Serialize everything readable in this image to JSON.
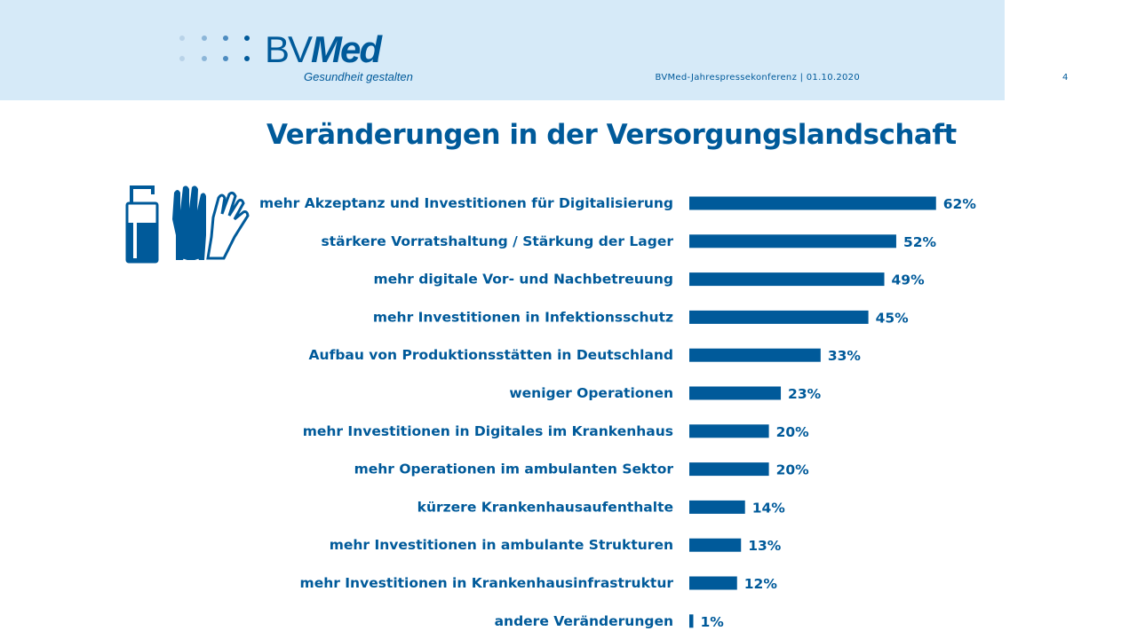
{
  "header": {
    "logo": {
      "word_bv": "BV",
      "word_med": "Med",
      "tagline": "Gesundheit gestalten"
    },
    "conference": "BVMed-Jahrespressekonferenz | 01.10.2020",
    "page_number": "4"
  },
  "icons": [
    "hand-sanitizer-icon",
    "gloves-icon"
  ],
  "colors": {
    "bar": "#005a9a",
    "header_band": "#d6eaf8",
    "text": "#005a9a"
  },
  "chart_data": {
    "type": "bar",
    "orientation": "horizontal",
    "title": "Veränderungen in der Versorgungslandschaft",
    "categories": [
      "mehr Akzeptanz und Investitionen für Digitalisierung",
      "stärkere Vorratshaltung / Stärkung der Lager",
      "mehr digitale Vor- und Nachbetreuung",
      "mehr Investitionen in Infektionsschutz",
      "Aufbau von Produktionsstätten in Deutschland",
      "weniger Operationen",
      "mehr Investitionen in Digitales im Krankenhaus",
      "mehr Operationen im ambulanten Sektor",
      "kürzere Krankenhausaufenthalte",
      "mehr Investitionen in ambulante Strukturen",
      "mehr Investitionen in Krankenhausinfrastruktur",
      "andere Veränderungen"
    ],
    "values": [
      62,
      52,
      49,
      45,
      33,
      23,
      20,
      20,
      14,
      13,
      12,
      1
    ],
    "value_labels": [
      "62%",
      "52%",
      "49%",
      "45%",
      "33%",
      "23%",
      "20%",
      "20%",
      "14%",
      "13%",
      "12%",
      "1%"
    ],
    "unit": "%",
    "grid": false,
    "legend": "none"
  }
}
